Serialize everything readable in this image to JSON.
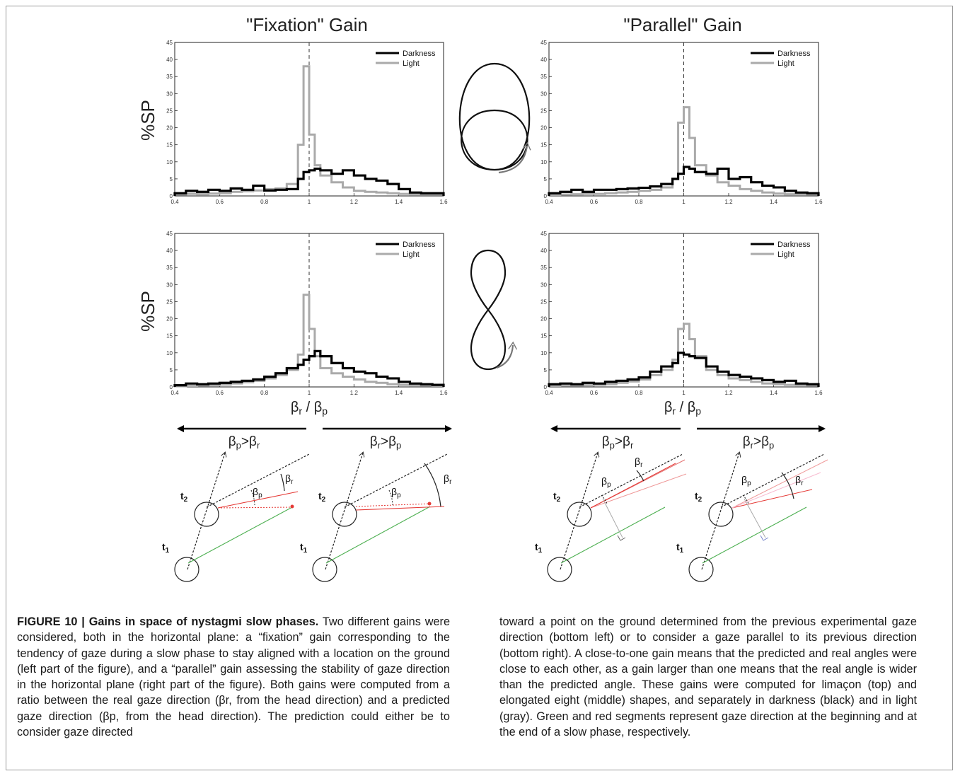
{
  "figure": {
    "left_title": "\"Fixation\" Gain",
    "right_title": "\"Parallel\" Gain",
    "ylabel": "%SP",
    "xlabel_beta": "β",
    "xlabel_sub_r": "r",
    "xlabel_slash": " / ",
    "xlabel_sub_p": "p",
    "legend": [
      "Darkness",
      "Light"
    ],
    "x_ticks": [
      "0.4",
      "0.6",
      "0.8",
      "1",
      "1.2",
      "1.4",
      "1.6"
    ],
    "y_ticks": [
      "0",
      "5",
      "10",
      "15",
      "20",
      "25",
      "30",
      "35",
      "40",
      "45"
    ],
    "colors": {
      "darkness": "#000000",
      "light": "#aaaaaa",
      "green": "#4caf50",
      "red": "#e53935"
    },
    "shape_icons": [
      "limacon-shape-icon",
      "figure-eight-shape-icon"
    ],
    "arrows": {
      "beta": "β",
      "sub_p": "p",
      "sub_r": "r",
      "gt": ">"
    },
    "diagram_labels": {
      "t_letter": "t",
      "t1_sub": "1",
      "t2_sub": "2",
      "beta": "β",
      "sub_p": "p",
      "sub_r": "r"
    }
  },
  "chart_data": [
    {
      "type": "histogram",
      "name": "fixation-limacon",
      "xlim": [
        0.4,
        1.6
      ],
      "ylim": [
        0,
        45
      ],
      "bin_edges": [
        0.4,
        0.45,
        0.5,
        0.55,
        0.6,
        0.65,
        0.7,
        0.75,
        0.8,
        0.85,
        0.9,
        0.95,
        0.975,
        1.0,
        1.025,
        1.05,
        1.1,
        1.15,
        1.2,
        1.25,
        1.3,
        1.35,
        1.4,
        1.45,
        1.5,
        1.55,
        1.6
      ],
      "series": [
        {
          "name": "Darkness",
          "values": [
            0.8,
            1.5,
            1.2,
            1.8,
            1.5,
            2.2,
            1.8,
            3,
            1.6,
            1.8,
            2,
            5,
            7,
            7.5,
            8,
            7.5,
            6.5,
            7.5,
            6,
            5,
            4.5,
            3.5,
            2,
            1,
            0.8,
            0.8
          ]
        },
        {
          "name": "Light",
          "values": [
            0.4,
            0.6,
            0.5,
            0.7,
            0.8,
            1.2,
            1.4,
            1.6,
            2,
            2.2,
            3.5,
            15,
            38,
            18,
            9,
            6,
            4,
            2.5,
            1.5,
            1.2,
            1,
            0.8,
            0.6,
            0.5,
            0.5,
            0.5
          ]
        }
      ],
      "xlabel": "",
      "ylabel": "%SP"
    },
    {
      "type": "histogram",
      "name": "parallel-limacon",
      "xlim": [
        0.4,
        1.6
      ],
      "ylim": [
        0,
        45
      ],
      "bin_edges": [
        0.4,
        0.45,
        0.5,
        0.55,
        0.6,
        0.65,
        0.7,
        0.75,
        0.8,
        0.85,
        0.9,
        0.95,
        0.975,
        1.0,
        1.025,
        1.05,
        1.1,
        1.15,
        1.2,
        1.25,
        1.3,
        1.35,
        1.4,
        1.45,
        1.5,
        1.55,
        1.6
      ],
      "series": [
        {
          "name": "Darkness",
          "values": [
            0.8,
            1.2,
            1.8,
            1.2,
            1.8,
            1.8,
            2,
            2.2,
            2.4,
            2.8,
            3.5,
            5,
            6.5,
            8.5,
            8,
            7,
            6.5,
            8,
            5,
            5.5,
            4,
            3,
            2.5,
            1.5,
            1,
            0.8
          ]
        },
        {
          "name": "Light",
          "values": [
            0.3,
            0.4,
            0.5,
            0.6,
            0.6,
            0.8,
            1,
            1.2,
            1.5,
            1.8,
            2.5,
            5,
            21.5,
            26,
            17,
            9,
            6,
            4,
            3,
            2,
            1.5,
            1,
            0.7,
            0.5,
            0.5,
            0.4
          ]
        }
      ],
      "xlabel": "",
      "ylabel": ""
    },
    {
      "type": "histogram",
      "name": "fixation-eight",
      "xlim": [
        0.4,
        1.6
      ],
      "ylim": [
        0,
        45
      ],
      "bin_edges": [
        0.4,
        0.45,
        0.5,
        0.55,
        0.6,
        0.65,
        0.7,
        0.75,
        0.8,
        0.85,
        0.9,
        0.95,
        0.975,
        1.0,
        1.025,
        1.05,
        1.1,
        1.15,
        1.2,
        1.25,
        1.3,
        1.35,
        1.4,
        1.45,
        1.5,
        1.55,
        1.6
      ],
      "series": [
        {
          "name": "Darkness",
          "values": [
            0.5,
            1,
            0.8,
            1,
            1.2,
            1.5,
            1.8,
            2.2,
            3,
            4,
            5.5,
            6.5,
            8,
            9,
            10.5,
            9,
            7,
            5.5,
            4.5,
            4,
            3,
            2.5,
            1.5,
            1,
            0.8,
            0.6
          ]
        },
        {
          "name": "Light",
          "values": [
            0.2,
            0.3,
            0.4,
            0.5,
            0.7,
            1,
            1.4,
            1.8,
            2.5,
            3.5,
            5,
            9.5,
            27,
            17,
            9,
            5.5,
            4,
            3,
            2.2,
            1.5,
            1.2,
            0.8,
            0.6,
            0.5,
            0.4,
            0.3
          ]
        }
      ],
      "xlabel": "βr / βp",
      "ylabel": "%SP"
    },
    {
      "type": "histogram",
      "name": "parallel-eight",
      "xlim": [
        0.4,
        1.6
      ],
      "ylim": [
        0,
        45
      ],
      "bin_edges": [
        0.4,
        0.45,
        0.5,
        0.55,
        0.6,
        0.65,
        0.7,
        0.75,
        0.8,
        0.85,
        0.9,
        0.95,
        0.975,
        1.0,
        1.025,
        1.05,
        1.1,
        1.15,
        1.2,
        1.25,
        1.3,
        1.35,
        1.4,
        1.45,
        1.5,
        1.55,
        1.6
      ],
      "series": [
        {
          "name": "Darkness",
          "values": [
            0.8,
            1,
            0.8,
            1.2,
            1,
            1.5,
            1.8,
            2.2,
            2.8,
            4.5,
            6,
            7,
            10,
            9.5,
            9,
            8.5,
            6,
            4.5,
            3.5,
            3,
            2.5,
            2,
            1.5,
            1.8,
            1,
            0.8
          ]
        },
        {
          "name": "Light",
          "values": [
            0.3,
            0.4,
            0.4,
            0.5,
            0.6,
            0.8,
            1.2,
            1.6,
            2.2,
            3.5,
            5,
            8,
            17,
            18.5,
            14,
            9,
            5,
            3.5,
            2.5,
            2,
            1.5,
            1,
            0.8,
            0.6,
            0.5,
            0.4
          ]
        }
      ],
      "xlabel": "βr / βp",
      "ylabel": ""
    }
  ],
  "caption": {
    "label": "FIGURE 10 | Gains in space of nystagmi slow phases.",
    "left": " Two different gains were considered, both in the horizontal plane: a “fixation” gain corresponding to the tendency of gaze during a slow phase to stay aligned with a location on the ground (left part of the figure), and a “parallel” gain assessing the stability of gaze direction in the horizontal plane (right part of the figure). Both gains were computed from a ratio between the real gaze direction (βr, from the head direction) and a predicted gaze direction (βp, from the head direction). The prediction could either be to consider gaze directed",
    "right": "toward a point on the ground determined from the previous experimental gaze direction (bottom left) or to consider a gaze parallel to its previous direction (bottom right). A close-to-one gain means that the predicted and real angles were close to each other, as a gain larger than one means that the real angle is wider than the predicted angle. These gains were computed for limaçon (top) and elongated eight (middle) shapes, and separately in darkness (black) and in light (gray). Green and red segments represent gaze direction at the beginning and at the end of a slow phase, respectively."
  }
}
